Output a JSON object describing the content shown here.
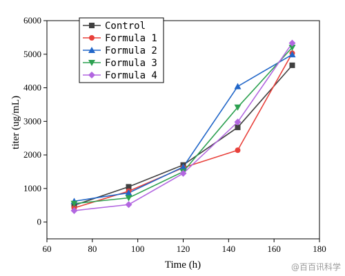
{
  "chart_data": {
    "type": "line",
    "title": "",
    "xlabel": "Time (h)",
    "ylabel": "titer (ug/mL)",
    "xlim": [
      60,
      180
    ],
    "ylim": [
      -500,
      6000
    ],
    "xticks": [
      60,
      80,
      100,
      120,
      140,
      160,
      180
    ],
    "yticks": [
      0,
      1000,
      2000,
      3000,
      4000,
      5000,
      6000
    ],
    "grid": false,
    "legend_position": "top-left",
    "x": [
      72,
      96,
      120,
      144,
      168
    ],
    "series": [
      {
        "name": "Control",
        "color": "#404040",
        "marker": "square",
        "values": [
          500,
          1050,
          1700,
          2820,
          4670
        ]
      },
      {
        "name": "Formula 1",
        "color": "#e8403a",
        "marker": "circle",
        "values": [
          420,
          920,
          1620,
          2140,
          5030
        ]
      },
      {
        "name": "Formula 2",
        "color": "#2166c8",
        "marker": "triangle-up",
        "values": [
          620,
          870,
          1640,
          4040,
          4990
        ]
      },
      {
        "name": "Formula 3",
        "color": "#2ca050",
        "marker": "triangle-down",
        "values": [
          550,
          720,
          1500,
          3420,
          5200
        ]
      },
      {
        "name": "Formula 4",
        "color": "#b266e0",
        "marker": "diamond",
        "values": [
          340,
          520,
          1450,
          2980,
          5330
        ]
      }
    ]
  },
  "watermark": {
    "text": "@百百讯科学"
  }
}
